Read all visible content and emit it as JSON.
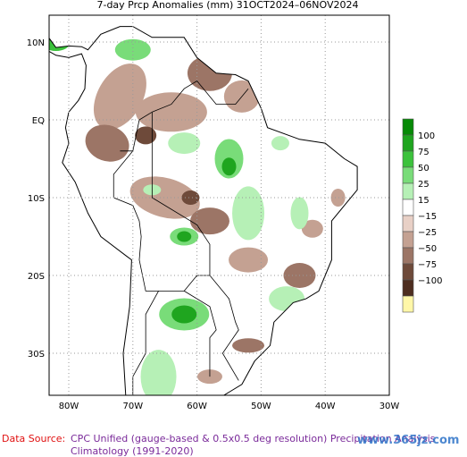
{
  "title": "7-day Prcp Anomalies (mm) 31OCT2024–06NOV2024",
  "lat_labels": [
    "10N",
    "EQ",
    "10S",
    "20S",
    "30S"
  ],
  "lon_labels": [
    "80W",
    "70W",
    "60W",
    "50W",
    "40W",
    "30W"
  ],
  "legend": {
    "labels": [
      "100",
      "75",
      "50",
      "25",
      "15",
      "−15",
      "−25",
      "−50",
      "−75",
      "−100"
    ],
    "colors": [
      "#078a07",
      "#1fa51f",
      "#3cc23c",
      "#79dc79",
      "#b6f0b6",
      "#ffffff",
      "#e8d0c6",
      "#c4a192",
      "#9c7566",
      "#6e4a3a",
      "#4e2e20",
      "#fff7a8"
    ]
  },
  "footer": {
    "source_label": "Data Source:",
    "source": "CPC Unified (gauge-based & 0.5x0.5 deg resolution) Precipitation Analysis",
    "climatology": "Climatology (1991-2020)"
  },
  "watermark": "www.365jz.com"
}
